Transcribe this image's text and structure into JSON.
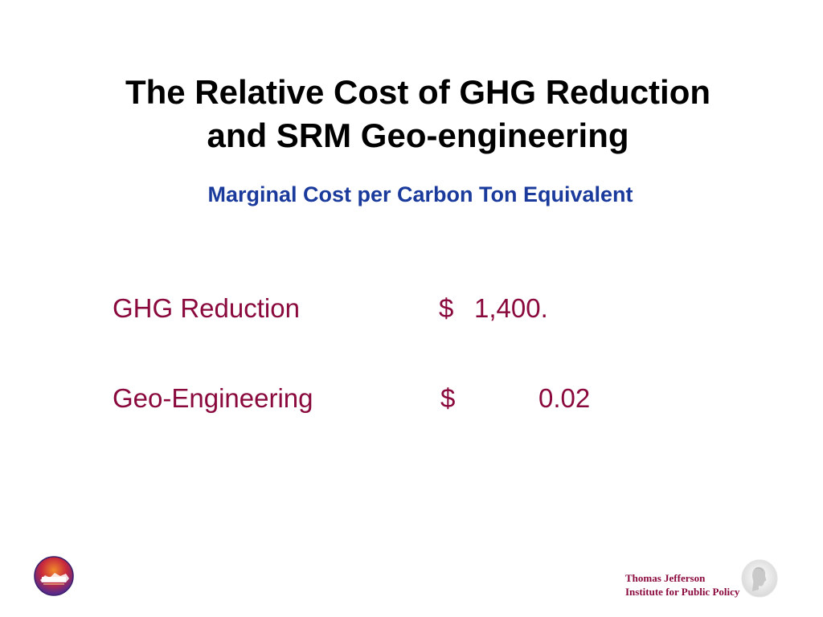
{
  "title": {
    "line1": "The Relative Cost of GHG Reduction",
    "line2": "and SRM Geo-engineering"
  },
  "subtitle": "Marginal Cost per Carbon Ton Equivalent",
  "rows": [
    {
      "label": "GHG Reduction",
      "currency": "$",
      "amount": "1,400."
    },
    {
      "label": "Geo-Engineering",
      "currency": "$",
      "amount": "0.02"
    }
  ],
  "footer": {
    "line1": "Thomas Jefferson",
    "line2": "Institute for Public Policy",
    "left_logo_icon": "virginia-seal-logo-icon",
    "right_logo_icon": "jefferson-silhouette-logo-icon"
  },
  "colors": {
    "title": "#000000",
    "subtitle": "#1a3a9c",
    "body": "#8b0a3e"
  }
}
